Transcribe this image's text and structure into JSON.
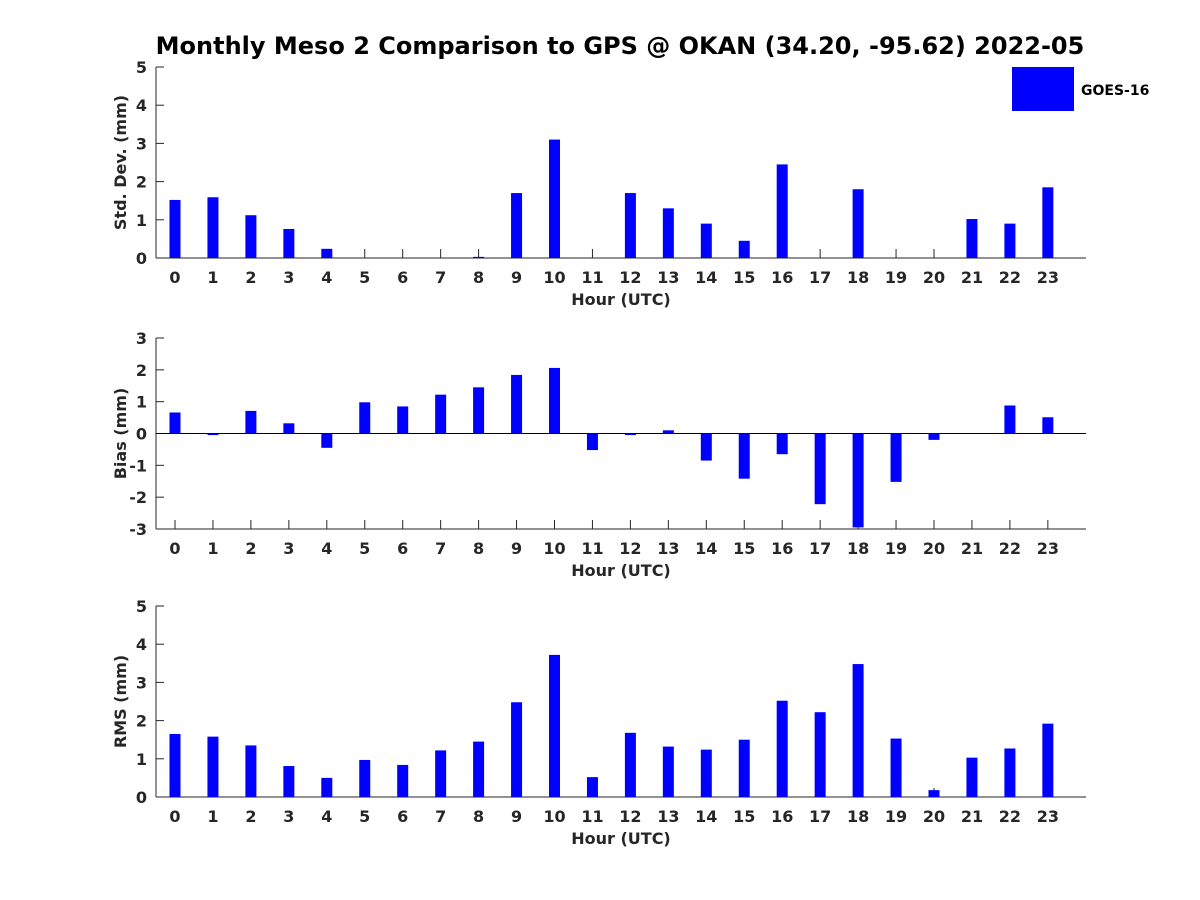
{
  "title": "Monthly Meso 2 Comparison to GPS @ OKAN (34.20, -95.62) 2022-05",
  "colors": {
    "bar": "#0000ff",
    "axis": "#262626",
    "background": "#ffffff"
  },
  "legend": {
    "label": "GOES-16",
    "placement": "top-right"
  },
  "chart_data": [
    {
      "type": "bar",
      "name": "std-dev",
      "xlabel": "Hour (UTC)",
      "ylabel": "Std. Dev. (mm)",
      "ylim": [
        0,
        5
      ],
      "yticks": [
        0,
        1,
        2,
        3,
        4,
        5
      ],
      "categories": [
        "0",
        "1",
        "2",
        "3",
        "4",
        "5",
        "6",
        "7",
        "8",
        "9",
        "10",
        "11",
        "12",
        "13",
        "14",
        "15",
        "16",
        "17",
        "18",
        "19",
        "20",
        "21",
        "22",
        "23"
      ],
      "series": [
        {
          "name": "GOES-16",
          "values": [
            1.52,
            1.59,
            1.12,
            0.76,
            0.24,
            0,
            0,
            0,
            0.03,
            1.7,
            3.1,
            0,
            1.7,
            1.3,
            0.9,
            0.45,
            2.45,
            0,
            1.8,
            0,
            0,
            1.02,
            0.9,
            1.85
          ]
        }
      ]
    },
    {
      "type": "bar",
      "name": "bias",
      "xlabel": "Hour (UTC)",
      "ylabel": "Bias (mm)",
      "ylim": [
        -3,
        3
      ],
      "yticks": [
        -3,
        -2,
        -1,
        0,
        1,
        2,
        3
      ],
      "categories": [
        "0",
        "1",
        "2",
        "3",
        "4",
        "5",
        "6",
        "7",
        "8",
        "9",
        "10",
        "11",
        "12",
        "13",
        "14",
        "15",
        "16",
        "17",
        "18",
        "19",
        "20",
        "21",
        "22",
        "23"
      ],
      "series": [
        {
          "name": "GOES-16",
          "values": [
            0.66,
            -0.05,
            0.71,
            0.32,
            -0.45,
            0.98,
            0.85,
            1.22,
            1.45,
            1.84,
            2.06,
            -0.52,
            -0.05,
            0.1,
            -0.85,
            -1.42,
            -0.65,
            -2.22,
            -2.95,
            -1.52,
            -0.2,
            0,
            0.88,
            0.51
          ]
        }
      ]
    },
    {
      "type": "bar",
      "name": "rms",
      "xlabel": "Hour (UTC)",
      "ylabel": "RMS (mm)",
      "ylim": [
        0,
        5
      ],
      "yticks": [
        0,
        1,
        2,
        3,
        4,
        5
      ],
      "categories": [
        "0",
        "1",
        "2",
        "3",
        "4",
        "5",
        "6",
        "7",
        "8",
        "9",
        "10",
        "11",
        "12",
        "13",
        "14",
        "15",
        "16",
        "17",
        "18",
        "19",
        "20",
        "21",
        "22",
        "23"
      ],
      "series": [
        {
          "name": "GOES-16",
          "values": [
            1.65,
            1.58,
            1.35,
            0.81,
            0.5,
            0.97,
            0.84,
            1.22,
            1.45,
            2.48,
            3.72,
            0.52,
            1.68,
            1.32,
            1.24,
            1.5,
            2.52,
            2.22,
            3.48,
            1.53,
            0.18,
            1.03,
            1.27,
            1.92
          ]
        }
      ]
    }
  ]
}
